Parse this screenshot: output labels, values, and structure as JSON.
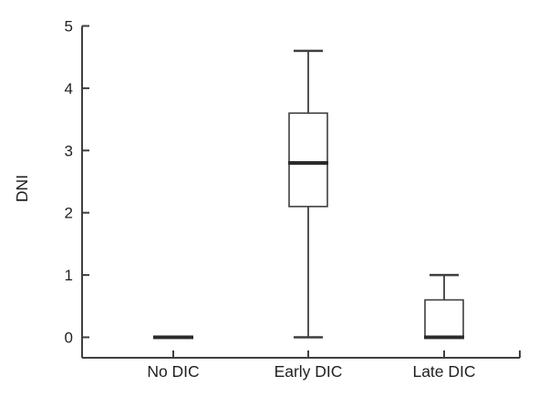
{
  "figure": {
    "background": "#ffffff",
    "line_color": "#3f3f3f",
    "median_color": "#2b2b2b",
    "text_color": "#1f1f1f"
  },
  "chart_data": {
    "type": "boxplot",
    "title": "",
    "xlabel": "",
    "ylabel": "DNI",
    "ylim": [
      0,
      5
    ],
    "yticks": [
      0,
      1,
      2,
      3,
      4,
      5
    ],
    "grid": false,
    "legend": false,
    "categories": [
      "No DIC",
      "Early DIC",
      "Late DIC"
    ],
    "series": [
      {
        "category": "No DIC",
        "min": 0,
        "q1": 0,
        "median": 0,
        "q3": 0,
        "max": 0
      },
      {
        "category": "Early DIC",
        "min": 0,
        "q1": 2.1,
        "median": 2.8,
        "q3": 3.6,
        "max": 4.6
      },
      {
        "category": "Late DIC",
        "min": 0,
        "q1": 0,
        "median": 0,
        "q3": 0.6,
        "max": 1.0
      }
    ]
  }
}
